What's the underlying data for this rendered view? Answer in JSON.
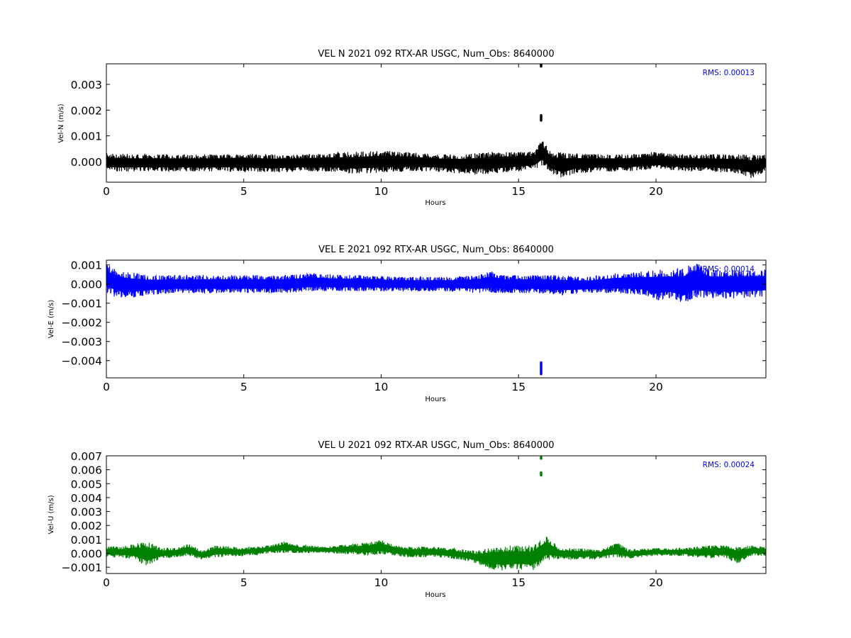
{
  "chart_data": [
    {
      "type": "line",
      "title": "VEL N 2021 092 RTX-AR  USGC, Num_Obs: 8640000",
      "xlabel": "Hours",
      "ylabel": "Vel-N (m/s)",
      "annotation": "RMS:  0.00013",
      "xlim": [
        0,
        24
      ],
      "ylim": [
        -0.0008,
        0.0038
      ],
      "xticks": [
        0,
        5,
        10,
        15,
        20
      ],
      "xtick_labels": [
        "0",
        "5",
        "10",
        "15",
        "20"
      ],
      "yticks": [
        0.0,
        0.001,
        0.002,
        0.003
      ],
      "ytick_labels": [
        "0.000",
        "0.001",
        "0.002",
        "0.003"
      ],
      "grid": false,
      "series": [
        {
          "color": "#000000",
          "envelope": {
            "x": [
              0,
              1,
              2,
              3,
              4,
              5,
              6,
              7,
              8,
              9,
              10,
              11,
              12,
              13,
              14,
              15,
              15.6,
              15.85,
              16.2,
              16.6,
              17,
              18,
              19,
              20,
              21,
              22,
              23,
              23.5,
              24
            ],
            "low": [
              -0.0004,
              -0.0004,
              -0.0004,
              -0.0004,
              -0.0004,
              -0.0004,
              -0.00045,
              -0.0004,
              -0.0004,
              -0.0005,
              -0.00045,
              -0.0004,
              -0.0004,
              -0.0005,
              -0.0005,
              -0.0004,
              -0.0003,
              -0.0002,
              -0.0005,
              -0.0007,
              -0.0005,
              -0.0004,
              -0.0004,
              -0.0003,
              -0.0004,
              -0.0004,
              -0.0005,
              -0.0007,
              -0.0004
            ],
            "high": [
              0.00035,
              0.0003,
              0.0003,
              0.0003,
              0.0003,
              0.00035,
              0.0003,
              0.0003,
              0.00035,
              0.0004,
              0.00045,
              0.0004,
              0.0003,
              0.0003,
              0.0004,
              0.0004,
              0.0004,
              0.0009,
              0.0004,
              0.0004,
              0.00035,
              0.0003,
              0.0003,
              0.0004,
              0.0003,
              0.0003,
              0.0003,
              0.0003,
              0.0003
            ]
          },
          "spikes": [
            {
              "x": 15.82,
              "y": [
                0.0016,
                0.0018
              ]
            },
            {
              "x": 15.82,
              "y": [
                0.0037,
                0.0038
              ]
            }
          ]
        }
      ]
    },
    {
      "type": "line",
      "title": "VEL E 2021 092 RTX-AR  USGC, Num_Obs: 8640000",
      "xlabel": "Hours",
      "ylabel": "Vel-E (m/s)",
      "annotation": "RMS:  0.00014",
      "xlim": [
        0,
        24
      ],
      "ylim": [
        -0.0049,
        0.00125
      ],
      "xticks": [
        0,
        5,
        10,
        15,
        20
      ],
      "xtick_labels": [
        "0",
        "5",
        "10",
        "15",
        "20"
      ],
      "yticks": [
        0.001,
        0.0,
        -0.001,
        -0.002,
        -0.003,
        -0.004
      ],
      "ytick_labels": [
        "0.001",
        "0.000",
        "−0.001",
        "−0.002",
        "−0.003",
        "−0.004"
      ],
      "grid": false,
      "series": [
        {
          "color": "#0000ff",
          "envelope": {
            "x": [
              0,
              0.3,
              0.7,
              1.5,
              2.5,
              3.5,
              4.5,
              5.5,
              6.5,
              7.5,
              8.5,
              9.5,
              10.5,
              11.5,
              12.5,
              13.5,
              14,
              14.5,
              15.5,
              16.5,
              17.5,
              18.5,
              19.5,
              20,
              20.5,
              21,
              21.4,
              22,
              23,
              24
            ],
            "low": [
              -0.0005,
              -0.0007,
              -0.0008,
              -0.0006,
              -0.0005,
              -0.0005,
              -0.0005,
              -0.0005,
              -0.0005,
              -0.0004,
              -0.0004,
              -0.0004,
              -0.0004,
              -0.0004,
              -0.0004,
              -0.0005,
              -0.0005,
              -0.0005,
              -0.0005,
              -0.0006,
              -0.0005,
              -0.0005,
              -0.0006,
              -0.0009,
              -0.0008,
              -0.0011,
              -0.0008,
              -0.0008,
              -0.0008,
              -0.0007
            ],
            "high": [
              0.0011,
              0.0009,
              0.0007,
              0.0005,
              0.0005,
              0.0005,
              0.0005,
              0.0005,
              0.0005,
              0.0006,
              0.0005,
              0.0005,
              0.0004,
              0.0004,
              0.0004,
              0.0005,
              0.0007,
              0.0005,
              0.0005,
              0.0005,
              0.0004,
              0.0006,
              0.0007,
              0.0008,
              0.0008,
              0.0009,
              0.0012,
              0.0008,
              0.0008,
              0.0008
            ]
          },
          "spikes": [
            {
              "x": 15.82,
              "y": [
                -0.0047,
                -0.0041
              ]
            }
          ]
        }
      ]
    },
    {
      "type": "line",
      "title": "VEL U 2021 092 RTX-AR  USGC, Num_Obs: 8640000",
      "xlabel": "Hours",
      "ylabel": "Vel-U (m/s)",
      "annotation": "RMS:  0.00024",
      "xlim": [
        0,
        24
      ],
      "ylim": [
        -0.00145,
        0.007
      ],
      "xticks": [
        0,
        5,
        10,
        15,
        20
      ],
      "xtick_labels": [
        "0",
        "5",
        "10",
        "15",
        "20"
      ],
      "yticks": [
        0.007,
        0.006,
        0.005,
        0.004,
        0.003,
        0.002,
        0.001,
        0.0,
        -0.001
      ],
      "ytick_labels": [
        "0.007",
        "0.006",
        "0.005",
        "0.004",
        "0.003",
        "0.002",
        "0.001",
        "0.000",
        "−0.001"
      ],
      "grid": false,
      "series": [
        {
          "color": "#008000",
          "envelope": {
            "x": [
              0,
              0.5,
              1,
              1.5,
              2,
              2.5,
              3,
              3.5,
              4,
              5,
              6,
              6.5,
              7,
              8,
              9,
              9.5,
              10,
              10.5,
              11,
              12,
              13,
              13.5,
              14,
              14.5,
              15,
              15.5,
              16,
              16.5,
              17,
              18,
              18.6,
              19,
              20,
              21,
              22,
              22.5,
              23,
              23.5,
              24
            ],
            "low": [
              -0.0003,
              -0.0003,
              -0.0005,
              -0.001,
              -0.0004,
              -0.0003,
              -0.0002,
              -0.0005,
              -0.0003,
              -0.0002,
              0.0,
              0.0,
              0.0,
              0.0,
              -0.0001,
              -0.0002,
              -0.0001,
              -0.0002,
              -0.0003,
              -0.0003,
              -0.0005,
              -0.0008,
              -0.0012,
              -0.0013,
              -0.0012,
              -0.0013,
              -0.0006,
              -0.0004,
              -0.0005,
              -0.0004,
              -0.0003,
              -0.0004,
              -0.0002,
              -0.0002,
              -0.0004,
              -0.0003,
              -0.0008,
              -0.0002,
              -0.0002
            ],
            "high": [
              0.0005,
              0.0005,
              0.0007,
              0.0009,
              0.0004,
              0.0004,
              0.0007,
              0.0002,
              0.0006,
              0.0004,
              0.0006,
              0.0009,
              0.0006,
              0.0005,
              0.0007,
              0.0008,
              0.001,
              0.0006,
              0.0005,
              0.0005,
              0.0003,
              0.0002,
              0.0005,
              0.0006,
              0.0006,
              0.0006,
              0.0013,
              0.0004,
              0.0004,
              0.0003,
              0.0008,
              0.0003,
              0.0004,
              0.0004,
              0.0006,
              0.0006,
              0.0005,
              0.0006,
              0.0005
            ]
          },
          "spikes": [
            {
              "x": 15.82,
              "y": [
                0.0056,
                0.0058
              ]
            },
            {
              "x": 15.82,
              "y": [
                0.0068,
                0.0069
              ]
            }
          ]
        }
      ]
    }
  ]
}
